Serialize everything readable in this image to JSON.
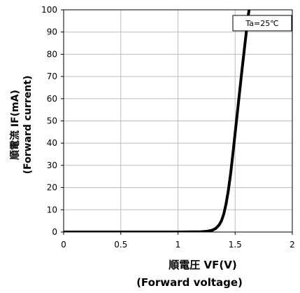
{
  "chart_data": {
    "type": "line",
    "xlabel": "順電圧 VF(V)",
    "xlabel_en": "(Forward voltage)",
    "ylabel": "順電流 IF(mA)",
    "ylabel_en": "(Forward current)",
    "annotation": "Ta=25℃",
    "xlim": [
      0,
      2
    ],
    "ylim": [
      0,
      100
    ],
    "x_ticks": [
      "0",
      "0.5",
      "1",
      "1.5",
      "2"
    ],
    "y_ticks": [
      "0",
      "10",
      "20",
      "30",
      "40",
      "50",
      "60",
      "70",
      "80",
      "90",
      "100"
    ],
    "grid": true,
    "series": [
      {
        "color": "#000000",
        "x": [
          0,
          1.0,
          1.2,
          1.25,
          1.3,
          1.33,
          1.36,
          1.38,
          1.4,
          1.42,
          1.44,
          1.46,
          1.48,
          1.5,
          1.52,
          1.54,
          1.56,
          1.58,
          1.6,
          1.615,
          1.625
        ],
        "y": [
          0,
          0,
          0.1,
          0.3,
          0.8,
          1.6,
          3.2,
          5.0,
          8.0,
          12.5,
          18.5,
          26.0,
          35.0,
          44.5,
          54.0,
          63.5,
          73.0,
          82.0,
          91.0,
          97.5,
          101
        ]
      }
    ]
  }
}
